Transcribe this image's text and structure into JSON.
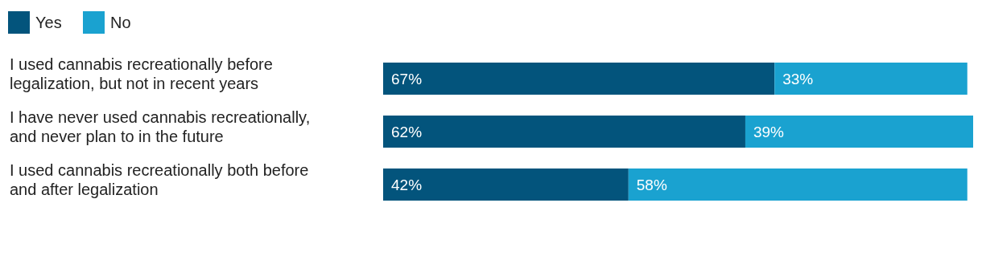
{
  "chart_data": {
    "type": "bar",
    "orientation": "horizontal",
    "stacked": true,
    "legend": "top left",
    "categories": [
      "I used cannabis recreationally before legalization, but not in recent years",
      "I have never used cannabis recreationally, and never plan to in the future",
      "I used cannabis recreationally both before and after legalization"
    ],
    "series": [
      {
        "name": "Yes",
        "color": "#03547c",
        "values": [
          67,
          62,
          42
        ],
        "value_labels": [
          "67%",
          "62%",
          "42%"
        ]
      },
      {
        "name": "No",
        "color": "#1aa2d0",
        "values": [
          33,
          39,
          58
        ],
        "value_labels": [
          "33%",
          "39%",
          "58%"
        ]
      }
    ]
  }
}
